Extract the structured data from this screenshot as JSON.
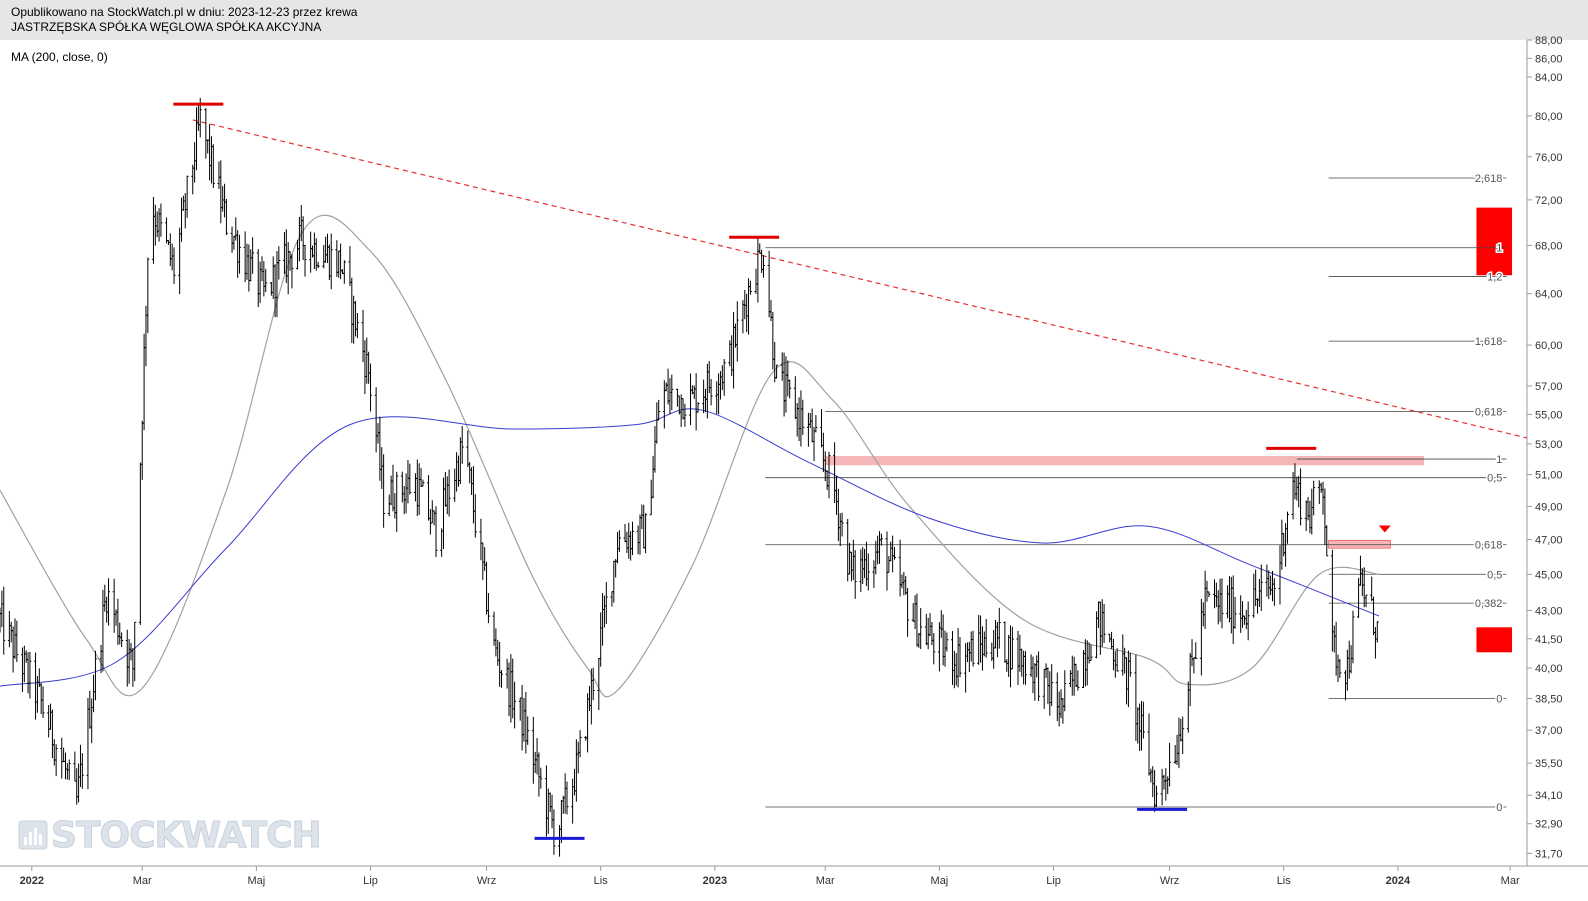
{
  "header": {
    "published": "Opublikowano na StockWatch.pl w dniu: 2023-12-23 przez krewa",
    "company": "JASTRZĘBSKA SPÓŁKA WĘGLOWA SPÓŁKA AKCYJNA"
  },
  "indicator_label": "MA (200, close, 0)",
  "watermark": "STOCKWATCH",
  "colors": {
    "price": "#000000",
    "ma200": "#3b3bd1",
    "ma_short": "#a0a0a0",
    "trendline": "#e53030",
    "resistance_zone": "#f4b6b6",
    "red_box": "#ff0000",
    "peak_marker": "#e00000",
    "trough_marker": "#1a1ad6",
    "fib_line": "#444444",
    "background": "#ffffff",
    "header_bg": "#e6e6e6"
  },
  "chart_data": {
    "type": "ohlc",
    "x_axis_labels": [
      "2022",
      "Mar",
      "Maj",
      "Lip",
      "Wrz",
      "Lis",
      "2023",
      "Mar",
      "Maj",
      "Lip",
      "Wrz",
      "Lis",
      "2024",
      "Mar"
    ],
    "x_axis_label_dates": [
      "2022-01-01",
      "2022-03-01",
      "2022-05-01",
      "2022-07-01",
      "2022-09-01",
      "2022-11-01",
      "2023-01-01",
      "2023-03-01",
      "2023-05-01",
      "2023-07-01",
      "2023-09-01",
      "2023-11-01",
      "2024-01-01",
      "2024-03-01"
    ],
    "x_range": [
      "2021-12-15",
      "2024-03-10"
    ],
    "y_axis_labels": [
      "88,00",
      "86,00",
      "84,00",
      "80,00",
      "76,00",
      "72,00",
      "68,00",
      "64,00",
      "60,00",
      "57,00",
      "55,00",
      "53,00",
      "51,00",
      "49,00",
      "47,00",
      "45,00",
      "43,00",
      "41,50",
      "40,00",
      "38,50",
      "37,00",
      "35,50",
      "34,10",
      "32,90",
      "31,70"
    ],
    "y_scale": "log",
    "ylim": [
      31.2,
      88.0
    ],
    "price_keypoints": [
      {
        "date": "2021-12-15",
        "close": 42.5
      },
      {
        "date": "2022-01-05",
        "close": 38.5
      },
      {
        "date": "2022-01-25",
        "close": 33.8
      },
      {
        "date": "2022-02-10",
        "close": 44.0
      },
      {
        "date": "2022-02-24",
        "close": 40.0
      },
      {
        "date": "2022-03-05",
        "close": 72.0
      },
      {
        "date": "2022-03-18",
        "close": 66.0
      },
      {
        "date": "2022-04-01",
        "close": 79.5
      },
      {
        "date": "2022-04-15",
        "close": 70.0
      },
      {
        "date": "2022-05-05",
        "close": 64.0
      },
      {
        "date": "2022-05-25",
        "close": 68.5
      },
      {
        "date": "2022-06-15",
        "close": 66.5
      },
      {
        "date": "2022-06-30",
        "close": 58.0
      },
      {
        "date": "2022-07-08",
        "close": 49.5
      },
      {
        "date": "2022-07-25",
        "close": 50.5
      },
      {
        "date": "2022-08-05",
        "close": 47.5
      },
      {
        "date": "2022-08-20",
        "close": 53.0
      },
      {
        "date": "2022-09-05",
        "close": 41.0
      },
      {
        "date": "2022-09-20",
        "close": 37.5
      },
      {
        "date": "2022-10-08",
        "close": 32.4
      },
      {
        "date": "2022-10-20",
        "close": 35.5
      },
      {
        "date": "2022-10-30",
        "close": 40.5
      },
      {
        "date": "2022-11-10",
        "close": 47.0
      },
      {
        "date": "2022-11-25",
        "close": 47.5
      },
      {
        "date": "2022-12-03",
        "close": 56.5
      },
      {
        "date": "2022-12-20",
        "close": 56.0
      },
      {
        "date": "2023-01-08",
        "close": 58.5
      },
      {
        "date": "2023-01-22",
        "close": 66.0
      },
      {
        "date": "2023-01-27",
        "close": 67.6
      },
      {
        "date": "2023-02-03",
        "close": 57.5
      },
      {
        "date": "2023-02-20",
        "close": 54.0
      },
      {
        "date": "2023-03-05",
        "close": 50.5
      },
      {
        "date": "2023-03-15",
        "close": 45.0
      },
      {
        "date": "2023-04-01",
        "close": 46.5
      },
      {
        "date": "2023-04-20",
        "close": 42.0
      },
      {
        "date": "2023-05-10",
        "close": 40.5
      },
      {
        "date": "2023-06-01",
        "close": 41.5
      },
      {
        "date": "2023-06-20",
        "close": 40.0
      },
      {
        "date": "2023-07-05",
        "close": 38.0
      },
      {
        "date": "2023-07-25",
        "close": 42.5
      },
      {
        "date": "2023-08-10",
        "close": 39.5
      },
      {
        "date": "2023-08-25",
        "close": 34.0
      },
      {
        "date": "2023-09-05",
        "close": 36.5
      },
      {
        "date": "2023-09-20",
        "close": 43.5
      },
      {
        "date": "2023-10-10",
        "close": 43.0
      },
      {
        "date": "2023-10-28",
        "close": 44.5
      },
      {
        "date": "2023-11-05",
        "close": 50.5
      },
      {
        "date": "2023-11-15",
        "close": 48.5
      },
      {
        "date": "2023-11-22",
        "close": 50.5
      },
      {
        "date": "2023-11-27",
        "close": 41.0
      },
      {
        "date": "2023-12-05",
        "close": 40.0
      },
      {
        "date": "2023-12-12",
        "close": 44.5
      },
      {
        "date": "2023-12-22",
        "close": 41.7
      }
    ],
    "ma200_keypoints": [
      {
        "date": "2021-12-15",
        "value": 39.1
      },
      {
        "date": "2022-02-15",
        "value": 40.3
      },
      {
        "date": "2022-04-15",
        "value": 46.5
      },
      {
        "date": "2022-06-20",
        "value": 54.3
      },
      {
        "date": "2022-09-15",
        "value": 54.0
      },
      {
        "date": "2022-11-20",
        "value": 54.3
      },
      {
        "date": "2022-12-25",
        "value": 55.3
      },
      {
        "date": "2023-02-20",
        "value": 51.8
      },
      {
        "date": "2023-04-25",
        "value": 48.3
      },
      {
        "date": "2023-06-25",
        "value": 46.8
      },
      {
        "date": "2023-08-20",
        "value": 47.8
      },
      {
        "date": "2023-10-15",
        "value": 45.5
      },
      {
        "date": "2023-12-22",
        "value": 42.7
      }
    ],
    "ma_short_keypoints": [
      {
        "date": "2021-12-15",
        "value": 50.0
      },
      {
        "date": "2022-01-30",
        "value": 41.5
      },
      {
        "date": "2022-03-01",
        "value": 39.0
      },
      {
        "date": "2022-04-15",
        "value": 50.0
      },
      {
        "date": "2022-05-25",
        "value": 69.0
      },
      {
        "date": "2022-07-01",
        "value": 67.5
      },
      {
        "date": "2022-08-10",
        "value": 57.5
      },
      {
        "date": "2022-09-25",
        "value": 45.0
      },
      {
        "date": "2022-10-25",
        "value": 40.0
      },
      {
        "date": "2022-11-10",
        "value": 38.9
      },
      {
        "date": "2022-12-20",
        "value": 45.5
      },
      {
        "date": "2023-02-01",
        "value": 58.0
      },
      {
        "date": "2023-03-05",
        "value": 56.0
      },
      {
        "date": "2023-04-15",
        "value": 49.0
      },
      {
        "date": "2023-06-15",
        "value": 42.5
      },
      {
        "date": "2023-08-20",
        "value": 40.5
      },
      {
        "date": "2023-09-10",
        "value": 39.2
      },
      {
        "date": "2023-10-15",
        "value": 40.0
      },
      {
        "date": "2023-11-20",
        "value": 45.0
      },
      {
        "date": "2023-12-22",
        "value": 45.0
      }
    ],
    "trendline": {
      "start": {
        "date": "2022-03-28",
        "value": 79.6
      },
      "end": {
        "date": "2024-03-10",
        "value": 53.4
      },
      "style": "dashed"
    },
    "resistance_zone": {
      "from": "2023-03-01",
      "to": "2024-01-15",
      "low": 51.6,
      "high": 52.2
    },
    "small_zone": {
      "from": "2023-11-25",
      "to": "2023-12-28",
      "low": 46.5,
      "high": 46.95
    },
    "red_triangle": {
      "date": "2023-12-25",
      "value": 47.6
    },
    "red_boxes": [
      {
        "from": "2024-02-12",
        "to": "2024-03-02",
        "low": 65.5,
        "high": 71.3
      },
      {
        "from": "2024-02-12",
        "to": "2024-03-02",
        "low": 40.8,
        "high": 42.1
      }
    ],
    "peak_markers": [
      {
        "date": "2022-03-31",
        "value": 81.2
      },
      {
        "date": "2023-01-22",
        "value": 68.7
      },
      {
        "date": "2023-11-05",
        "value": 52.7
      }
    ],
    "trough_markers": [
      {
        "date": "2022-10-10",
        "value": 32.3
      },
      {
        "date": "2023-08-28",
        "value": 33.5
      }
    ],
    "fib_levels": [
      {
        "label": "2,618",
        "value": 74.0,
        "from": "2023-11-25",
        "to": "2024-02-28"
      },
      {
        "label": "1",
        "value": 67.8,
        "from": "2023-01-28",
        "to": "2024-02-28"
      },
      {
        "label": "1,2",
        "value": 65.4,
        "from": "2023-11-25",
        "to": "2024-02-28"
      },
      {
        "label": "1,618",
        "value": 60.3,
        "from": "2023-11-25",
        "to": "2024-02-28"
      },
      {
        "label": "0,618",
        "value": 55.2,
        "from": "2023-03-01",
        "to": "2024-02-28"
      },
      {
        "label": "1",
        "value": 52.0,
        "from": "2023-11-08",
        "to": "2024-02-28"
      },
      {
        "label": "0,5",
        "value": 50.8,
        "from": "2023-01-28",
        "to": "2024-02-28"
      },
      {
        "label": "0,618",
        "value": 46.7,
        "from": "2023-01-28",
        "to": "2024-02-28"
      },
      {
        "label": "0,5",
        "value": 45.0,
        "from": "2023-11-25",
        "to": "2024-02-28"
      },
      {
        "label": "0,382",
        "value": 43.4,
        "from": "2023-11-25",
        "to": "2024-02-28"
      },
      {
        "label": "0",
        "value": 38.5,
        "from": "2023-11-25",
        "to": "2024-02-28"
      },
      {
        "label": "0",
        "value": 33.6,
        "from": "2023-01-28",
        "to": "2024-02-28"
      }
    ]
  }
}
